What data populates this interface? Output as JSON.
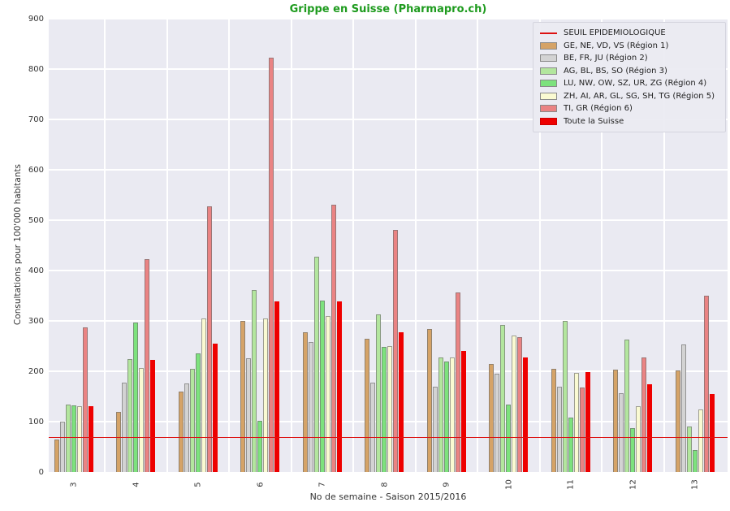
{
  "title": "Grippe en Suisse (Pharmapro.ch)",
  "title_color": "#1e9b1e",
  "chart_data": {
    "type": "bar",
    "title": "Grippe en Suisse (Pharmapro.ch)",
    "xlabel": "No de semaine - Saison 2015/2016",
    "ylabel": "Consultations pour 100'000 habitants",
    "ylim": [
      0,
      900
    ],
    "yticks": [
      0,
      100,
      200,
      300,
      400,
      500,
      600,
      700,
      800,
      900
    ],
    "grid": true,
    "legend_position": "upper right",
    "plot_bg": "#eaeaf2",
    "grid_color": "#ffffff",
    "categories": [
      "3",
      "4",
      "5",
      "6",
      "7",
      "8",
      "9",
      "10",
      "11",
      "12",
      "13"
    ],
    "threshold": {
      "label": "SEUIL EPIDEMIOLOGIQUE",
      "value": 68,
      "color": "#dd1111"
    },
    "series": [
      {
        "name": "GE, NE, VD, VS (Région 1)",
        "color": "#d5a367",
        "values": [
          64,
          120,
          160,
          300,
          278,
          265,
          284,
          215,
          205,
          204,
          202
        ]
      },
      {
        "name": "BE, FR, JU (Région 2)",
        "color": "#d3d3d3",
        "values": [
          100,
          178,
          176,
          226,
          258,
          178,
          170,
          195,
          170,
          156,
          254
        ]
      },
      {
        "name": "AG, BL, BS, SO (Région 3)",
        "color": "#b3e69e",
        "values": [
          134,
          225,
          205,
          362,
          428,
          313,
          227,
          292,
          300,
          263,
          91
        ]
      },
      {
        "name": "LU, NW, OW, SZ, UR, ZG (Région 4)",
        "color": "#7de27d",
        "values": [
          132,
          297,
          235,
          101,
          341,
          249,
          220,
          134,
          108,
          87,
          44
        ]
      },
      {
        "name": "ZH, AI, AR, GL, SG, SH, TG (Région 5)",
        "color": "#fafad2",
        "values": [
          130,
          206,
          305,
          305,
          310,
          250,
          228,
          271,
          197,
          130,
          124
        ]
      },
      {
        "name": "TI, GR (Région 6)",
        "color": "#ea8383",
        "values": [
          287,
          423,
          528,
          823,
          530,
          481,
          356,
          267,
          168,
          227,
          350
        ]
      },
      {
        "name": "Toute la Suisse",
        "color": "#ee0000",
        "values": [
          130,
          222,
          255,
          339,
          338,
          278,
          240,
          228,
          198,
          175,
          155
        ]
      }
    ]
  }
}
